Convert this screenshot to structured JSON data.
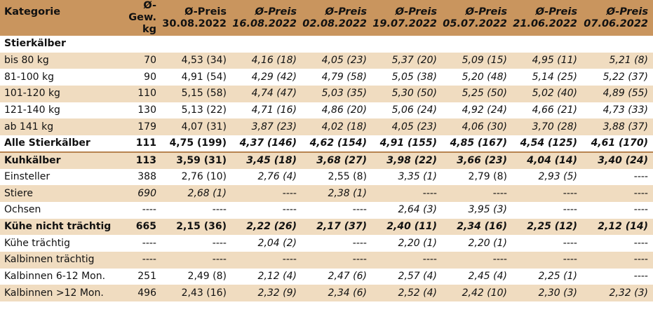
{
  "header": {
    "kategorie": "Kategorie",
    "gewicht_line1": "Ø-Gew.",
    "gewicht_line2": "kg",
    "preise": [
      {
        "label": "Ø-Preis",
        "date": "30.08.2022"
      },
      {
        "label": "Ø-Preis",
        "date": "16.08.2022"
      },
      {
        "label": "Ø-Preis",
        "date": "02.08.2022"
      },
      {
        "label": "Ø-Preis",
        "date": "19.07.2022"
      },
      {
        "label": "Ø-Preis",
        "date": "05.07.2022"
      },
      {
        "label": "Ø-Preis",
        "date": "21.06.2022"
      },
      {
        "label": "Ø-Preis",
        "date": "07.06.2022"
      }
    ]
  },
  "section_stierkaelber": "Stierkälber",
  "rows": [
    {
      "label": "bis 80 kg",
      "gew": "70",
      "p": [
        "4,53 (34)",
        "4,16 (18)",
        "4,05 (23)",
        "5,37 (20)",
        "5,09 (15)",
        "4,95 (11)",
        "5,21 (8)"
      ]
    },
    {
      "label": "81-100 kg",
      "gew": "90",
      "p": [
        "4,91 (54)",
        "4,29 (42)",
        "4,79 (58)",
        "5,05 (38)",
        "5,20 (48)",
        "5,14 (25)",
        "5,22 (37)"
      ]
    },
    {
      "label": "101-120 kg",
      "gew": "110",
      "p": [
        "5,15 (58)",
        "4,74 (47)",
        "5,03 (35)",
        "5,30 (50)",
        "5,25 (50)",
        "5,02 (40)",
        "4,89 (55)"
      ]
    },
    {
      "label": "121-140 kg",
      "gew": "130",
      "p": [
        "5,13 (22)",
        "4,71 (16)",
        "4,86 (20)",
        "5,06 (24)",
        "4,92 (24)",
        "4,66 (21)",
        "4,73 (33)"
      ]
    },
    {
      "label": "ab 141 kg",
      "gew": "179",
      "p": [
        "4,07 (31)",
        "3,87 (23)",
        "4,02 (18)",
        "4,05 (23)",
        "4,06 (30)",
        "3,70 (28)",
        "3,88 (37)"
      ]
    },
    {
      "label": "Alle Stierkälber",
      "gew": "111",
      "p": [
        "4,75 (199)",
        "4,37 (146)",
        "4,62 (154)",
        "4,91 (155)",
        "4,85 (167)",
        "4,54 (125)",
        "4,61 (170)"
      ]
    },
    {
      "label": "Kuhkälber",
      "gew": "113",
      "p": [
        "3,59 (31)",
        "3,45 (18)",
        "3,68 (27)",
        "3,98 (22)",
        "3,66 (23)",
        "4,04 (14)",
        "3,40 (24)"
      ]
    },
    {
      "label": "Einsteller",
      "gew": "388",
      "p": [
        "2,76 (10)",
        "2,76 (4)",
        "2,55 (8)",
        "3,35 (1)",
        "2,79 (8)",
        "2,93 (5)",
        "----"
      ]
    },
    {
      "label": "Stiere",
      "gew": "690",
      "p": [
        "2,68 (1)",
        "----",
        "2,38 (1)",
        "----",
        "----",
        "----",
        "----"
      ]
    },
    {
      "label": "Ochsen",
      "gew": "----",
      "p": [
        "----",
        "----",
        "----",
        "2,64 (3)",
        "3,95 (3)",
        "----",
        "----"
      ]
    },
    {
      "label": "Kühe nicht trächtig",
      "gew": "665",
      "p": [
        "2,15 (36)",
        "2,22 (26)",
        "2,17 (37)",
        "2,40 (11)",
        "2,34 (16)",
        "2,25 (12)",
        "2,12 (14)"
      ]
    },
    {
      "label": "Kühe trächtig",
      "gew": "----",
      "p": [
        "----",
        "2,04 (2)",
        "----",
        "2,20 (1)",
        "2,20 (1)",
        "----",
        "----"
      ]
    },
    {
      "label": "Kalbinnen trächtig",
      "gew": "----",
      "p": [
        "----",
        "----",
        "----",
        "----",
        "----",
        "----",
        "----"
      ]
    },
    {
      "label": "Kalbinnen 6-12 Mon.",
      "gew": "251",
      "p": [
        "2,49 (8)",
        "2,12 (4)",
        "2,47 (6)",
        "2,57 (4)",
        "2,45 (4)",
        "2,25 (1)",
        "----"
      ]
    },
    {
      "label": "Kalbinnen >12 Mon.",
      "gew": "496",
      "p": [
        "2,43 (16)",
        "2,32 (9)",
        "2,34 (6)",
        "2,52 (4)",
        "2,42 (10)",
        "2,30 (3)",
        "2,32 (3)"
      ]
    }
  ]
}
